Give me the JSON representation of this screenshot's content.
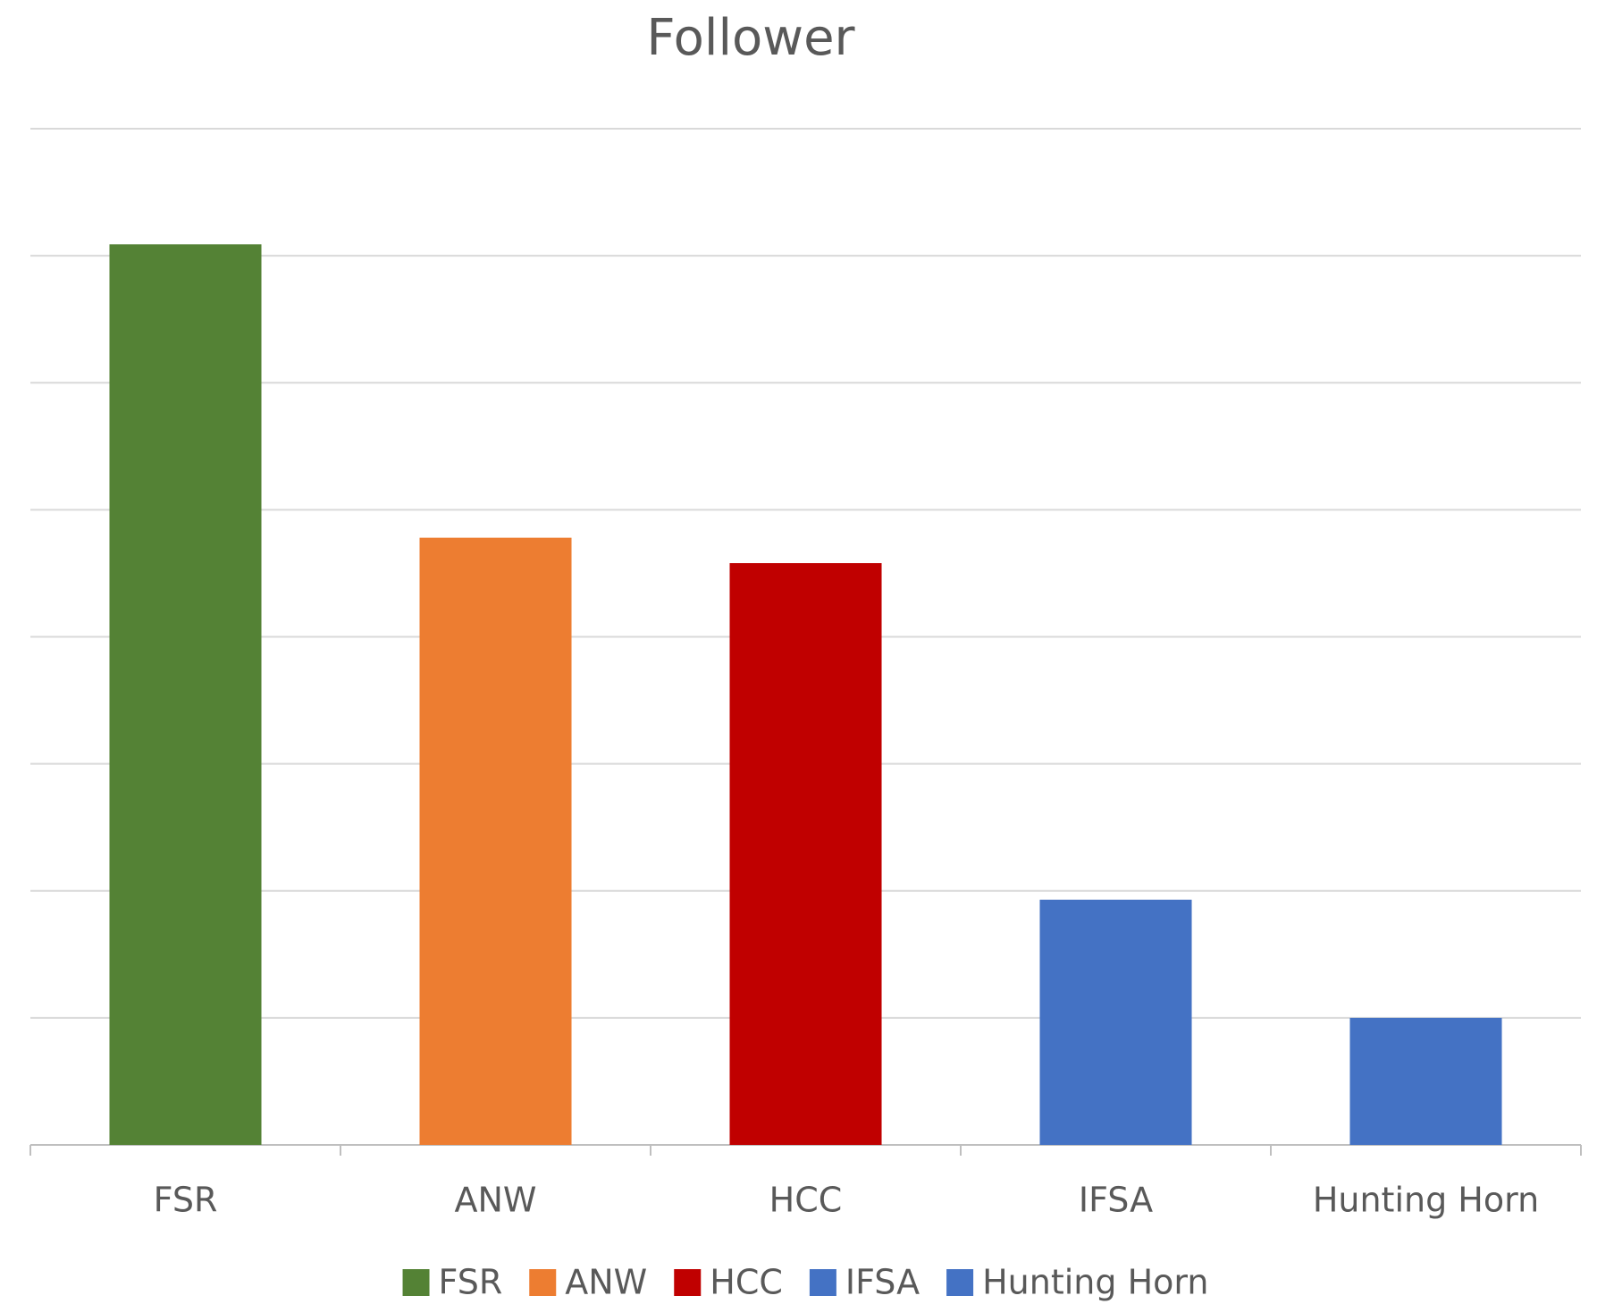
{
  "chart_data": {
    "type": "bar",
    "title": "Follower",
    "categories": [
      "FSR",
      "ANW",
      "HCC",
      "IFSA",
      "Hunting Horn"
    ],
    "values": [
      7.09,
      4.78,
      4.58,
      1.93,
      1.0
    ],
    "colors": [
      "#548235",
      "#ed7d31",
      "#c00000",
      "#4472c4",
      "#4472c4"
    ],
    "ylim": [
      0,
      8
    ],
    "yticks": [
      0,
      1,
      2,
      3,
      4,
      5,
      6,
      7,
      8
    ],
    "tick_labels": false,
    "grid": true,
    "legend": "bottom"
  }
}
